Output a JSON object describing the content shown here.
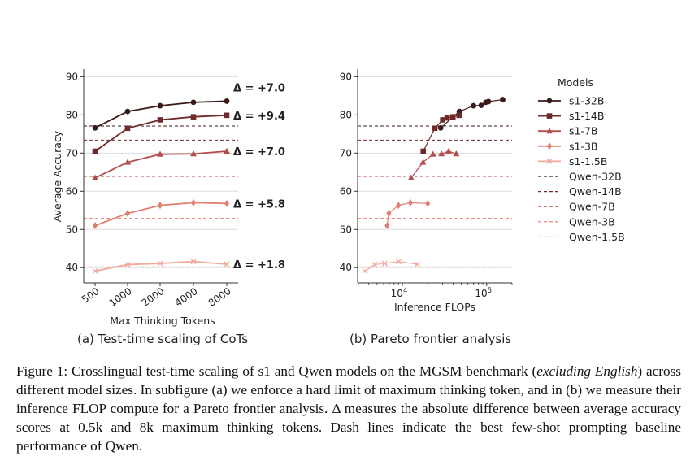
{
  "figure": {
    "subcaption_a": "(a) Test-time scaling of CoTs",
    "subcaption_b": "(b) Pareto frontier analysis"
  },
  "caption": {
    "lead": "Figure 1: Crosslingual test-time scaling of s1 and Qwen models on the MGSM benchmark (",
    "italic": "excluding English",
    "rest": ") across different model sizes. In subfigure (a) we enforce a hard limit of maximum thinking token, and in (b) we measure their inference FLOP compute for a Pareto frontier analysis. Δ measures the absolute difference between average accuracy scores at 0.5k and 8k maximum thinking tokens. Dash lines indicate the best few-shot prompting baseline performance of Qwen."
  },
  "colors": {
    "s1-32B": "#3b1a1a",
    "s1-14B": "#6e2a2a",
    "s1-7B": "#b34e4e",
    "s1-3B": "#e07e72",
    "s1-1.5B": "#f0a99c",
    "grid": "#dddddd"
  },
  "legend": {
    "title": "Models",
    "entries": [
      "s1-32B",
      "s1-14B",
      "s1-7B",
      "s1-3B",
      "s1-1.5B",
      "Qwen-32B",
      "Qwen-14B",
      "Qwen-7B",
      "Qwen-3B",
      "Qwen-1.5B"
    ]
  },
  "chart_data": [
    {
      "type": "line",
      "xlabel": "Max Thinking Tokens",
      "ylabel": "Average Accuracy",
      "categories": [
        "500",
        "1000",
        "2000",
        "4000",
        "8000"
      ],
      "ylim": [
        36,
        92
      ],
      "yticks": [
        40,
        50,
        60,
        70,
        80,
        90
      ],
      "grid": "y",
      "series": [
        {
          "name": "s1-32B",
          "marker": "circle",
          "values": [
            76.6,
            80.9,
            82.4,
            83.3,
            83.6
          ],
          "delta": "Δ = +7.0"
        },
        {
          "name": "s1-14B",
          "marker": "square",
          "values": [
            70.5,
            76.5,
            78.7,
            79.5,
            79.9
          ],
          "delta": "Δ = +9.4"
        },
        {
          "name": "s1-7B",
          "marker": "triangle",
          "values": [
            63.5,
            67.6,
            69.7,
            69.8,
            70.5
          ],
          "delta": "Δ = +7.0"
        },
        {
          "name": "s1-3B",
          "marker": "diamond",
          "values": [
            51.0,
            54.2,
            56.3,
            57.0,
            56.8
          ],
          "delta": "Δ = +5.8"
        },
        {
          "name": "s1-1.5B",
          "marker": "x",
          "values": [
            39.1,
            40.8,
            41.1,
            41.6,
            40.9
          ],
          "delta": "Δ = +1.8"
        }
      ],
      "baselines": [
        {
          "name": "Qwen-32B",
          "value": 77.1
        },
        {
          "name": "Qwen-14B",
          "value": 73.4
        },
        {
          "name": "Qwen-7B",
          "value": 63.9
        },
        {
          "name": "Qwen-3B",
          "value": 52.9
        },
        {
          "name": "Qwen-1.5B",
          "value": 40.2
        }
      ]
    },
    {
      "type": "scatter",
      "xlabel": "Inference FLOPs",
      "xscale": "log",
      "xlim": [
        2950,
        200000
      ],
      "xticks": [
        {
          "value": 10000,
          "label": "10^4"
        },
        {
          "value": 100000,
          "label": "10^5"
        }
      ],
      "ylim": [
        36,
        92
      ],
      "yticks": [
        40,
        50,
        60,
        70,
        80,
        90
      ],
      "grid": "y",
      "series": [
        {
          "name": "s1-32B",
          "marker": "circle",
          "points": [
            [
              28500,
              76.6
            ],
            [
              47500,
              80.9
            ],
            [
              70000,
              82.4
            ],
            [
              97500,
              83.3
            ],
            [
              155000,
              84.0
            ],
            [
              86000,
              82.5
            ],
            [
              105000,
              83.5
            ]
          ]
        },
        {
          "name": "s1-14B",
          "marker": "square",
          "points": [
            [
              17700,
              70.5
            ],
            [
              24300,
              76.5
            ],
            [
              30100,
              78.7
            ],
            [
              34000,
              79.2
            ],
            [
              39800,
              79.5
            ],
            [
              47100,
              79.9
            ]
          ]
        },
        {
          "name": "s1-7B",
          "marker": "triangle",
          "points": [
            [
              12700,
              63.5
            ],
            [
              17600,
              67.6
            ],
            [
              23100,
              69.7
            ],
            [
              29100,
              69.8
            ],
            [
              35400,
              70.5
            ],
            [
              43600,
              69.8
            ]
          ]
        },
        {
          "name": "s1-3B",
          "marker": "diamond",
          "points": [
            [
              6600,
              51.0
            ],
            [
              6900,
              54.2
            ],
            [
              9000,
              56.3
            ],
            [
              12500,
              57.0
            ],
            [
              20000,
              56.8
            ]
          ]
        },
        {
          "name": "s1-1.5B",
          "marker": "x",
          "points": [
            [
              3600,
              39.1
            ],
            [
              4700,
              40.8
            ],
            [
              6200,
              41.1
            ],
            [
              9000,
              41.6
            ],
            [
              15000,
              40.9
            ]
          ]
        }
      ],
      "baselines": [
        {
          "name": "Qwen-32B",
          "value": 77.1
        },
        {
          "name": "Qwen-14B",
          "value": 73.4
        },
        {
          "name": "Qwen-7B",
          "value": 63.9
        },
        {
          "name": "Qwen-3B",
          "value": 52.9
        },
        {
          "name": "Qwen-1.5B",
          "value": 40.2
        }
      ]
    }
  ]
}
